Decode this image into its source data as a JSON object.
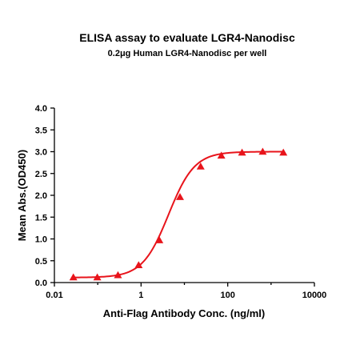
{
  "chart_data": {
    "type": "scatter",
    "title": "ELISA assay to evaluate LGR4-Nanodisc",
    "subtitle": "0.2μg Human LGR4-Nanodisc per well",
    "xlabel": "Anti-Flag Antibody Conc. (ng/ml)",
    "ylabel": "Mean Abs.(OD450)",
    "x_scale": "log",
    "xlim": [
      0.01,
      10000
    ],
    "ylim": [
      0,
      4
    ],
    "x_ticks": [
      0.01,
      1,
      100,
      10000
    ],
    "x_tick_labels": [
      "0.01",
      "1",
      "100",
      "10000"
    ],
    "y_ticks": [
      0,
      0.5,
      1,
      1.5,
      2,
      2.5,
      3,
      3.5,
      4
    ],
    "y_tick_labels": [
      "0.0",
      "0.5",
      "1.0",
      "1.5",
      "2.0",
      "2.5",
      "3.0",
      "3.5",
      "4.0"
    ],
    "grid": false,
    "series": [
      {
        "marker": "triangle",
        "color": "#e8141b",
        "x": [
          0.0274,
          0.0977,
          0.293,
          0.879,
          2.64,
          7.91,
          23.7,
          71.2,
          214,
          641,
          1922
        ],
        "y": [
          0.12,
          0.12,
          0.17,
          0.4,
          0.97,
          1.96,
          2.66,
          2.91,
          2.98,
          3.0,
          2.98
        ]
      }
    ],
    "fit_curve": {
      "color": "#e8141b",
      "bottom": 0.115,
      "top": 3.0,
      "ec50": 4.3,
      "hill": 1.45
    }
  }
}
